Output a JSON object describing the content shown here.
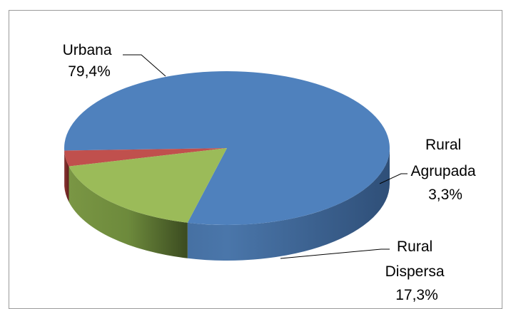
{
  "chart_data": {
    "type": "pie",
    "style": "3d",
    "title": "",
    "legend": "none",
    "slices": [
      {
        "name": "Urbana",
        "label_lines": [
          "Urbana",
          "79,4%"
        ],
        "value": 79.4,
        "color": "#4f81bd"
      },
      {
        "name": "Rural Agrupada",
        "label_lines": [
          "Rural",
          "Agrupada",
          "3,3%"
        ],
        "value": 3.3,
        "color": "#c0504d"
      },
      {
        "name": "Rural Dispersa",
        "label_lines": [
          "Rural",
          "Dispersa",
          "17,3%"
        ],
        "value": 17.3,
        "color": "#9bbb59"
      }
    ]
  }
}
